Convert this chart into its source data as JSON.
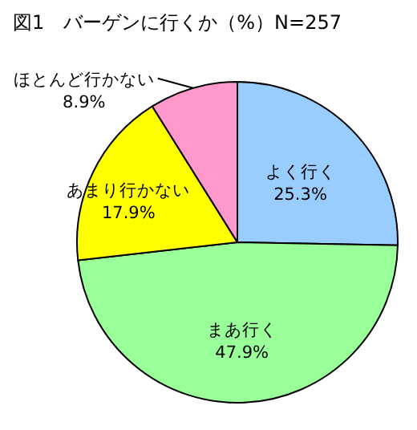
{
  "chart_data": {
    "type": "pie",
    "title": "図1　バーゲンに行くか（%）N=257",
    "categories": [
      "よく行く",
      "まあ行く",
      "あまり行かない",
      "ほとんど行かない"
    ],
    "values": [
      25.3,
      47.9,
      17.9,
      8.9
    ],
    "colors": [
      "#99ccff",
      "#99ff99",
      "#ffff00",
      "#ff99cc"
    ],
    "value_labels": [
      "25.3%",
      "47.9%",
      "17.9%",
      "8.9%"
    ]
  }
}
